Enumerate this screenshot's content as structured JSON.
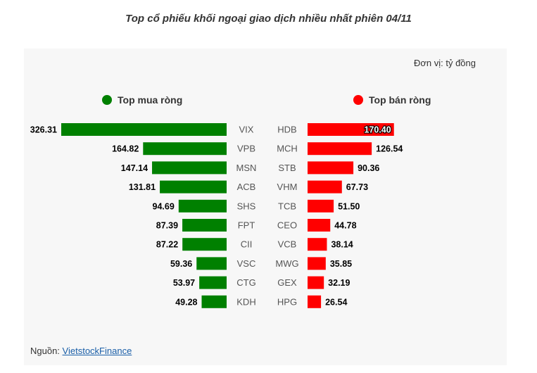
{
  "title": "Top cổ phiếu khối ngoại giao dịch nhiều nhất phiên 04/11",
  "unit_label": "Đơn vị: tỷ đồng",
  "legend": {
    "buy": "Top mua ròng",
    "sell": "Top bán ròng"
  },
  "source": {
    "prefix": "Nguồn: ",
    "link_text": "VietstockFinance"
  },
  "colors": {
    "buy": "#008000",
    "sell": "#ff0000"
  },
  "chart_data": {
    "type": "bar",
    "orientation": "horizontal",
    "series": [
      {
        "name": "Top mua ròng",
        "categories": [
          "VIX",
          "VPB",
          "MSN",
          "ACB",
          "SHS",
          "FPT",
          "CII",
          "VSC",
          "CTG",
          "KDH"
        ],
        "values": [
          326.31,
          164.82,
          147.14,
          131.81,
          94.69,
          87.39,
          87.22,
          59.36,
          53.97,
          49.28
        ]
      },
      {
        "name": "Top bán ròng",
        "categories": [
          "HDB",
          "MCH",
          "STB",
          "VHM",
          "TCB",
          "CEO",
          "VCB",
          "MWG",
          "GEX",
          "HPG"
        ],
        "values": [
          170.4,
          126.54,
          90.36,
          67.73,
          51.5,
          44.78,
          38.14,
          35.85,
          32.19,
          26.54
        ]
      }
    ],
    "value_labels": {
      "buy": [
        "326.31",
        "164.82",
        "147.14",
        "131.81",
        "94.69",
        "87.39",
        "87.22",
        "59.36",
        "53.97",
        "49.28"
      ],
      "sell": [
        "170.40",
        "126.54",
        "90.36",
        "67.73",
        "51.50",
        "44.78",
        "38.14",
        "35.85",
        "32.19",
        "26.54"
      ]
    }
  }
}
